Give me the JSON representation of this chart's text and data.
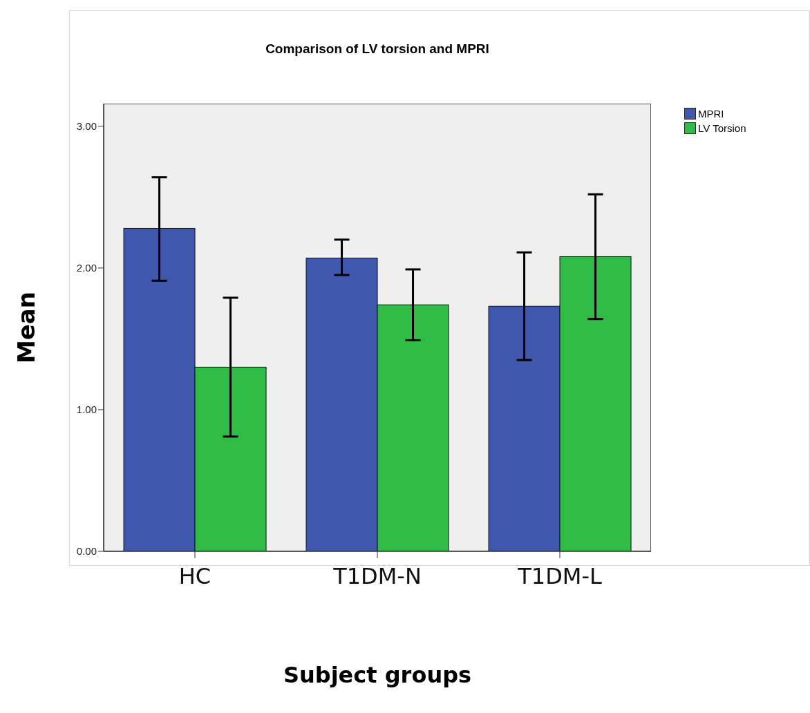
{
  "chart_data": {
    "type": "bar",
    "title": "Comparison of LV torsion and MPRI",
    "xlabel": "Subject groups",
    "ylabel": "Mean",
    "categories": [
      "HC",
      "T1DM-N",
      "T1DM-L"
    ],
    "series": [
      {
        "name": "MPRI",
        "color": "#3f57ad",
        "values": [
          2.28,
          2.07,
          1.73
        ],
        "errors": [
          [
            1.91,
            2.64
          ],
          [
            1.95,
            2.2
          ],
          [
            1.35,
            2.11
          ]
        ]
      },
      {
        "name": "LV Torsion",
        "color": "#2fbb46",
        "values": [
          1.3,
          1.74,
          2.08
        ],
        "errors": [
          [
            0.81,
            1.79
          ],
          [
            1.49,
            1.99
          ],
          [
            1.64,
            2.52
          ]
        ]
      }
    ],
    "ylim": [
      0,
      3.16
    ],
    "yticks": [
      {
        "value": 0,
        "label": "0.00"
      },
      {
        "value": 1,
        "label": "1.00"
      },
      {
        "value": 2,
        "label": "2.00"
      },
      {
        "value": 3,
        "label": "3.00"
      }
    ],
    "grid": false,
    "legend": "top right"
  }
}
